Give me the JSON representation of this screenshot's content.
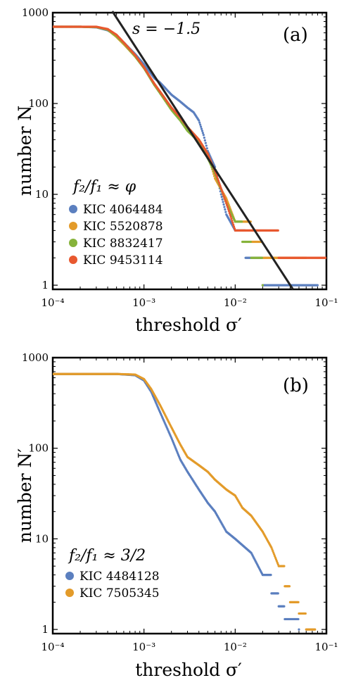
{
  "chart_data": [
    {
      "id": "a",
      "type": "scatter",
      "panel_label": "(a)",
      "xlabel": "threshold σ′",
      "ylabel": "number N",
      "xscale": "log",
      "yscale": "log",
      "xlim": [
        0.0001,
        0.1
      ],
      "ylim": [
        0.9,
        1000
      ],
      "xticks": [
        "10⁻⁴",
        "10⁻³",
        "10⁻²",
        "10⁻¹"
      ],
      "yticks": [
        "1",
        "10",
        "100",
        "1000"
      ],
      "legend_title": "f₂/f₁ ≈ φ",
      "legend_position": "bottom-left",
      "fit_line": {
        "label": "s = −1.5",
        "slope": -1.5,
        "points": [
          [
            0.00045,
            1100
          ],
          [
            0.043,
            0.9
          ]
        ],
        "color": "#222222"
      },
      "series": [
        {
          "name": "KIC 4064484",
          "color": "#5b7fbf",
          "points": [
            [
              0.0001,
              700
            ],
            [
              0.0002,
              700
            ],
            [
              0.0003,
              690
            ],
            [
              0.0004,
              640
            ],
            [
              0.0005,
              560
            ],
            [
              0.0006,
              470
            ],
            [
              0.0008,
              350
            ],
            [
              0.001,
              270
            ],
            [
              0.0013,
              190
            ],
            [
              0.0015,
              170
            ],
            [
              0.002,
              125
            ],
            [
              0.0025,
              105
            ],
            [
              0.003,
              90
            ],
            [
              0.0035,
              80
            ],
            [
              0.004,
              65
            ],
            [
              0.0045,
              45
            ],
            [
              0.005,
              30
            ],
            [
              0.006,
              20
            ],
            [
              0.007,
              10
            ],
            [
              0.008,
              6
            ],
            [
              0.01,
              4
            ],
            [
              0.013,
              2
            ],
            [
              0.02,
              1
            ],
            [
              0.05,
              1
            ],
            [
              0.08,
              1
            ]
          ]
        },
        {
          "name": "KIC 5520878",
          "color": "#e39b2a",
          "points": [
            [
              0.0001,
              700
            ],
            [
              0.0002,
              700
            ],
            [
              0.0003,
              695
            ],
            [
              0.0004,
              650
            ],
            [
              0.0005,
              540
            ],
            [
              0.0006,
              450
            ],
            [
              0.0008,
              330
            ],
            [
              0.001,
              250
            ],
            [
              0.0013,
              160
            ],
            [
              0.0015,
              135
            ],
            [
              0.002,
              90
            ],
            [
              0.0025,
              68
            ],
            [
              0.003,
              55
            ],
            [
              0.004,
              40
            ],
            [
              0.005,
              28
            ],
            [
              0.006,
              15
            ],
            [
              0.008,
              9
            ],
            [
              0.01,
              5
            ],
            [
              0.015,
              3
            ],
            [
              0.02,
              2
            ],
            [
              0.03,
              2
            ],
            [
              0.06,
              2
            ]
          ]
        },
        {
          "name": "KIC 8832417",
          "color": "#86b33b",
          "points": [
            [
              0.0001,
              700
            ],
            [
              0.0002,
              700
            ],
            [
              0.0003,
              695
            ],
            [
              0.0004,
              650
            ],
            [
              0.0005,
              550
            ],
            [
              0.0006,
              460
            ],
            [
              0.0008,
              330
            ],
            [
              0.001,
              245
            ],
            [
              0.0013,
              160
            ],
            [
              0.0015,
              130
            ],
            [
              0.002,
              85
            ],
            [
              0.0025,
              65
            ],
            [
              0.003,
              50
            ],
            [
              0.004,
              38
            ],
            [
              0.005,
              25
            ],
            [
              0.006,
              17
            ],
            [
              0.008,
              8
            ],
            [
              0.01,
              5
            ],
            [
              0.012,
              3
            ],
            [
              0.015,
              2
            ],
            [
              0.02,
              1
            ]
          ]
        },
        {
          "name": "KIC 9453114",
          "color": "#e8582f",
          "points": [
            [
              0.0001,
              700
            ],
            [
              0.0002,
              700
            ],
            [
              0.0003,
              700
            ],
            [
              0.0004,
              660
            ],
            [
              0.0005,
              570
            ],
            [
              0.0006,
              470
            ],
            [
              0.0008,
              340
            ],
            [
              0.001,
              250
            ],
            [
              0.0013,
              165
            ],
            [
              0.0015,
              135
            ],
            [
              0.002,
              90
            ],
            [
              0.0025,
              70
            ],
            [
              0.003,
              55
            ],
            [
              0.004,
              40
            ],
            [
              0.005,
              28
            ],
            [
              0.006,
              18
            ],
            [
              0.008,
              8
            ],
            [
              0.01,
              4
            ],
            [
              0.015,
              4
            ],
            [
              0.025,
              4
            ],
            [
              0.03,
              2
            ],
            [
              0.06,
              2
            ],
            [
              0.1,
              2
            ]
          ]
        }
      ]
    },
    {
      "id": "b",
      "type": "scatter",
      "panel_label": "(b)",
      "xlabel": "threshold σ′",
      "ylabel": "number N′",
      "xscale": "log",
      "yscale": "log",
      "xlim": [
        0.0001,
        0.1
      ],
      "ylim": [
        0.9,
        1000
      ],
      "xticks": [
        "10⁻⁴",
        "10⁻³",
        "10⁻²",
        "10⁻¹"
      ],
      "yticks": [
        "1",
        "10",
        "100",
        "1000"
      ],
      "legend_title": "f₂/f₁ ≈ 3/2",
      "legend_position": "bottom-left",
      "series": [
        {
          "name": "KIC 4484128",
          "color": "#5b7fbf",
          "points": [
            [
              0.0001,
              660
            ],
            [
              0.0002,
              660
            ],
            [
              0.0005,
              660
            ],
            [
              0.0008,
              640
            ],
            [
              0.001,
              560
            ],
            [
              0.0012,
              420
            ],
            [
              0.0015,
              250
            ],
            [
              0.002,
              130
            ],
            [
              0.0025,
              75
            ],
            [
              0.003,
              55
            ],
            [
              0.004,
              35
            ],
            [
              0.005,
              25
            ],
            [
              0.006,
              20
            ],
            [
              0.008,
              12
            ],
            [
              0.01,
              10
            ],
            [
              0.015,
              7
            ],
            [
              0.02,
              4
            ],
            [
              0.025,
              2.5
            ],
            [
              0.03,
              1.8
            ],
            [
              0.035,
              1.3
            ],
            [
              0.045,
              1.3
            ],
            [
              0.05,
              1
            ]
          ]
        },
        {
          "name": "KIC 7505345",
          "color": "#e39b2a",
          "points": [
            [
              0.0001,
              660
            ],
            [
              0.0002,
              660
            ],
            [
              0.0005,
              660
            ],
            [
              0.0008,
              650
            ],
            [
              0.001,
              580
            ],
            [
              0.0012,
              450
            ],
            [
              0.0015,
              300
            ],
            [
              0.002,
              170
            ],
            [
              0.0025,
              110
            ],
            [
              0.003,
              80
            ],
            [
              0.004,
              65
            ],
            [
              0.005,
              55
            ],
            [
              0.006,
              45
            ],
            [
              0.008,
              35
            ],
            [
              0.01,
              30
            ],
            [
              0.012,
              22
            ],
            [
              0.015,
              18
            ],
            [
              0.02,
              12
            ],
            [
              0.025,
              8
            ],
            [
              0.03,
              5
            ],
            [
              0.035,
              3
            ],
            [
              0.04,
              2
            ],
            [
              0.05,
              1.5
            ],
            [
              0.06,
              1
            ],
            [
              0.075,
              1
            ]
          ]
        }
      ]
    }
  ]
}
